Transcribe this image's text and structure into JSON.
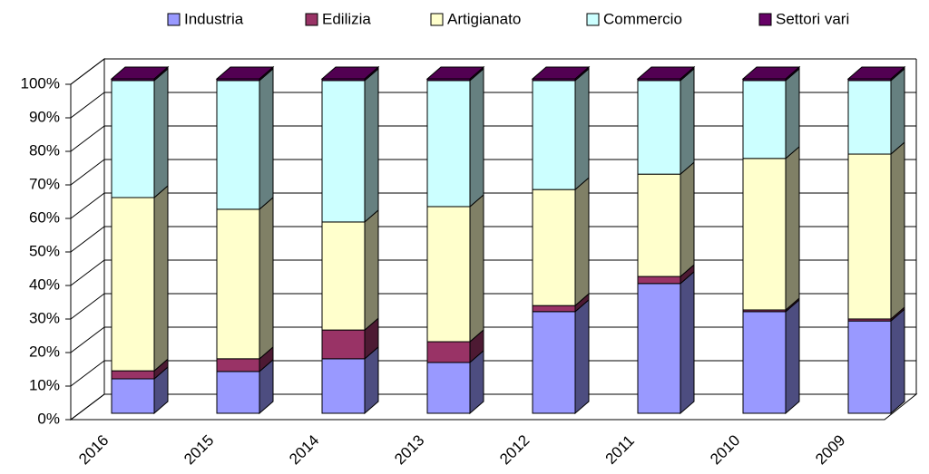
{
  "chart_data": {
    "type": "bar3d_stacked",
    "categories": [
      "2016",
      "2015",
      "2014",
      "2013",
      "2012",
      "2011",
      "2010",
      "2009"
    ],
    "series": [
      {
        "name": "Industria",
        "color": "#9999ff",
        "values": [
          10.3,
          12.5,
          16.3,
          15.2,
          30.4,
          38.8,
          30.4,
          27.6
        ]
      },
      {
        "name": "Edilizia",
        "color": "#993366",
        "values": [
          2.4,
          3.8,
          8.6,
          6.2,
          1.8,
          2.1,
          0.5,
          0.6
        ]
      },
      {
        "name": "Artigianato",
        "color": "#ffffcc",
        "values": [
          51.8,
          44.7,
          32.3,
          40.4,
          34.7,
          30.6,
          45.3,
          49.3
        ]
      },
      {
        "name": "Commercio",
        "color": "#ccffff",
        "values": [
          35.0,
          38.5,
          42.3,
          37.7,
          32.6,
          28.0,
          23.3,
          22.0
        ]
      },
      {
        "name": "Settori vari",
        "color": "#660066",
        "values": [
          0.5,
          0.5,
          0.5,
          0.5,
          0.5,
          0.5,
          0.5,
          0.5
        ]
      }
    ],
    "ylim": [
      0,
      100
    ],
    "yticks": [
      {
        "value": 0,
        "label": "0%"
      },
      {
        "value": 10,
        "label": "10%"
      },
      {
        "value": 20,
        "label": "20%"
      },
      {
        "value": 30,
        "label": "30%"
      },
      {
        "value": 40,
        "label": "40%"
      },
      {
        "value": 50,
        "label": "50%"
      },
      {
        "value": 60,
        "label": "60%"
      },
      {
        "value": 70,
        "label": "70%"
      },
      {
        "value": 80,
        "label": "80%"
      },
      {
        "value": 90,
        "label": "90%"
      },
      {
        "value": 100,
        "label": "100%"
      }
    ],
    "grid": true,
    "legend": "top"
  }
}
